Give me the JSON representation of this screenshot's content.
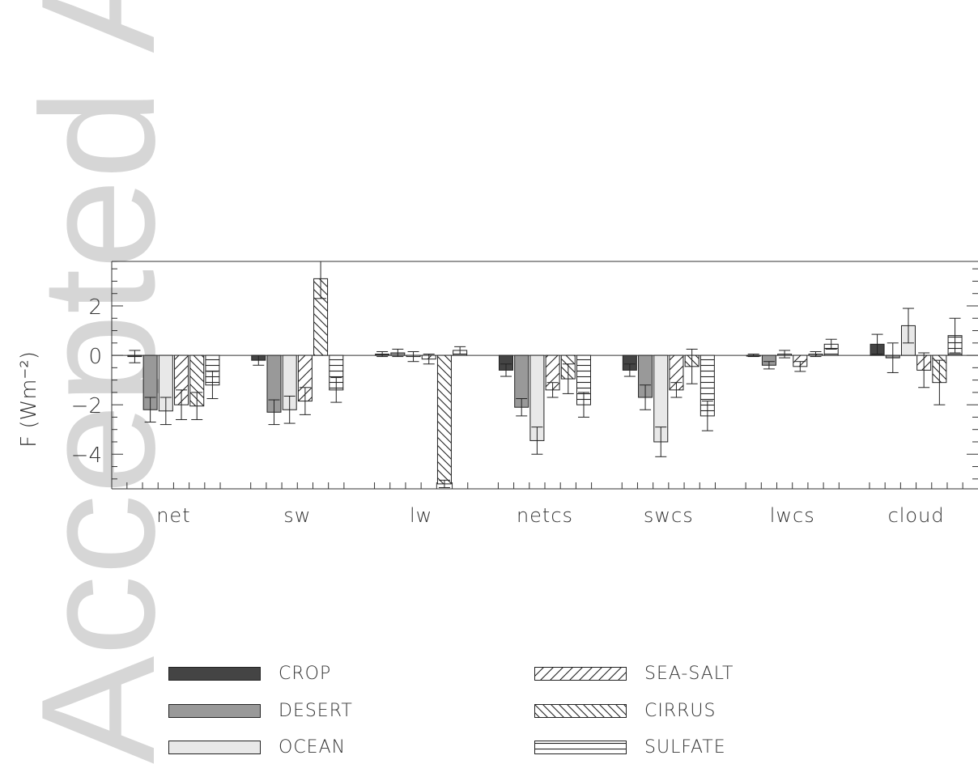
{
  "watermark": {
    "text": "Accepted Article",
    "color": "#d6d6d6"
  },
  "chart_data": {
    "type": "bar",
    "title": "",
    "xlabel": "",
    "ylabel": "F (Wm⁻²)",
    "ylim": [
      -5.4,
      3.8
    ],
    "y_ticks": [
      -4,
      -2,
      0,
      2
    ],
    "grid": false,
    "categories": [
      "net",
      "sw",
      "lw",
      "netcs",
      "swcs",
      "lwcs",
      "cloud"
    ],
    "series": [
      {
        "name": "CROP",
        "fill": "#444444",
        "pattern": "solid",
        "values": [
          -0.05,
          -0.2,
          0.05,
          -0.6,
          -0.6,
          0.0,
          0.45
        ],
        "errors": [
          0.25,
          0.2,
          0.1,
          0.25,
          0.25,
          0.05,
          0.4
        ]
      },
      {
        "name": "DESERT",
        "fill": "#999999",
        "pattern": "solid",
        "values": [
          -2.2,
          -2.3,
          0.1,
          -2.1,
          -1.7,
          -0.4,
          -0.1
        ],
        "errors": [
          0.5,
          0.5,
          0.15,
          0.35,
          0.5,
          0.15,
          0.6
        ]
      },
      {
        "name": "OCEAN",
        "fill": "#e8e8e8",
        "pattern": "solid",
        "values": [
          -2.25,
          -2.2,
          -0.05,
          -3.45,
          -3.5,
          0.05,
          1.2
        ],
        "errors": [
          0.55,
          0.55,
          0.2,
          0.55,
          0.6,
          0.15,
          0.7
        ]
      },
      {
        "name": "SEA-SALT",
        "fill": "#ffffff",
        "pattern": "sea-salt",
        "values": [
          -2.0,
          -1.85,
          -0.15,
          -1.4,
          -1.4,
          -0.45,
          -0.6
        ],
        "errors": [
          0.6,
          0.55,
          0.2,
          0.3,
          0.3,
          0.2,
          0.7
        ]
      },
      {
        "name": "CIRRUS",
        "fill": "#ffffff",
        "pattern": "cirrus",
        "values": [
          -2.05,
          3.1,
          -5.2,
          -0.95,
          -0.45,
          0.05,
          -1.1
        ],
        "errors": [
          0.55,
          0.8,
          0.15,
          0.6,
          0.7,
          0.1,
          0.9
        ]
      },
      {
        "name": "SULFATE",
        "fill": "#ffffff",
        "pattern": "sulfate",
        "values": [
          -1.2,
          -1.4,
          0.2,
          -2.0,
          -2.45,
          0.45,
          0.8
        ],
        "errors": [
          0.55,
          0.5,
          0.15,
          0.5,
          0.6,
          0.2,
          0.7
        ]
      }
    ]
  },
  "legend": {
    "items": [
      {
        "label": "CROP",
        "pattern": "solid-crop"
      },
      {
        "label": "DESERT",
        "pattern": "solid-desert"
      },
      {
        "label": "OCEAN",
        "pattern": "solid-ocean"
      },
      {
        "label": "SEA-SALT",
        "pattern": "sea-salt"
      },
      {
        "label": "CIRRUS",
        "pattern": "cirrus"
      },
      {
        "label": "SULFATE",
        "pattern": "sulfate"
      }
    ]
  }
}
